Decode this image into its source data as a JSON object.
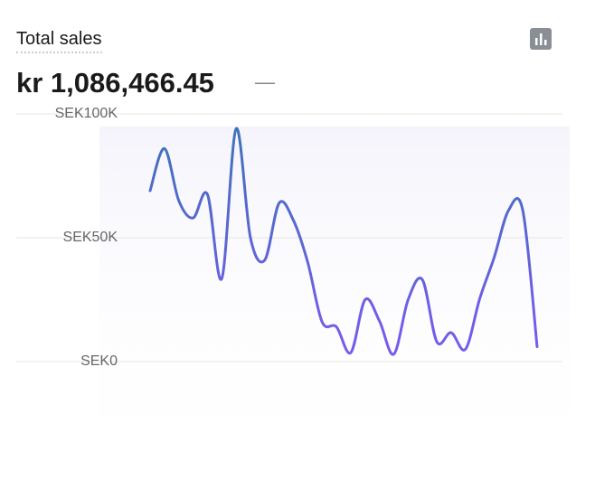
{
  "header": {
    "title": "Total sales",
    "total": "kr 1,086,466.45",
    "comparison": "—"
  },
  "chart_data": {
    "type": "line",
    "categories": [
      null,
      null,
      null,
      null,
      null,
      null,
      null,
      null,
      null,
      null,
      null,
      null,
      null,
      null,
      null,
      null,
      null,
      null,
      null,
      null,
      null,
      null,
      null,
      null,
      null,
      null,
      null,
      null
    ],
    "series": [
      {
        "name": "Total sales",
        "color": [
          "#3f72b8",
          "#7a5af0"
        ],
        "values": [
          69000,
          86000,
          65000,
          58000,
          67500,
          33500,
          94000,
          50000,
          41000,
          64000,
          57000,
          40000,
          16000,
          14000,
          3600,
          25000,
          16400,
          3000,
          25000,
          33000,
          8000,
          11700,
          5000,
          25500,
          42000,
          61000,
          61000,
          6000
        ]
      }
    ],
    "ylim": [
      0,
      100000
    ],
    "yticks": [
      {
        "value": 0,
        "label": "SEK0"
      },
      {
        "value": 50000,
        "label": "SEK50K"
      },
      {
        "value": 100000,
        "label": "SEK100K"
      }
    ],
    "grid": true
  }
}
